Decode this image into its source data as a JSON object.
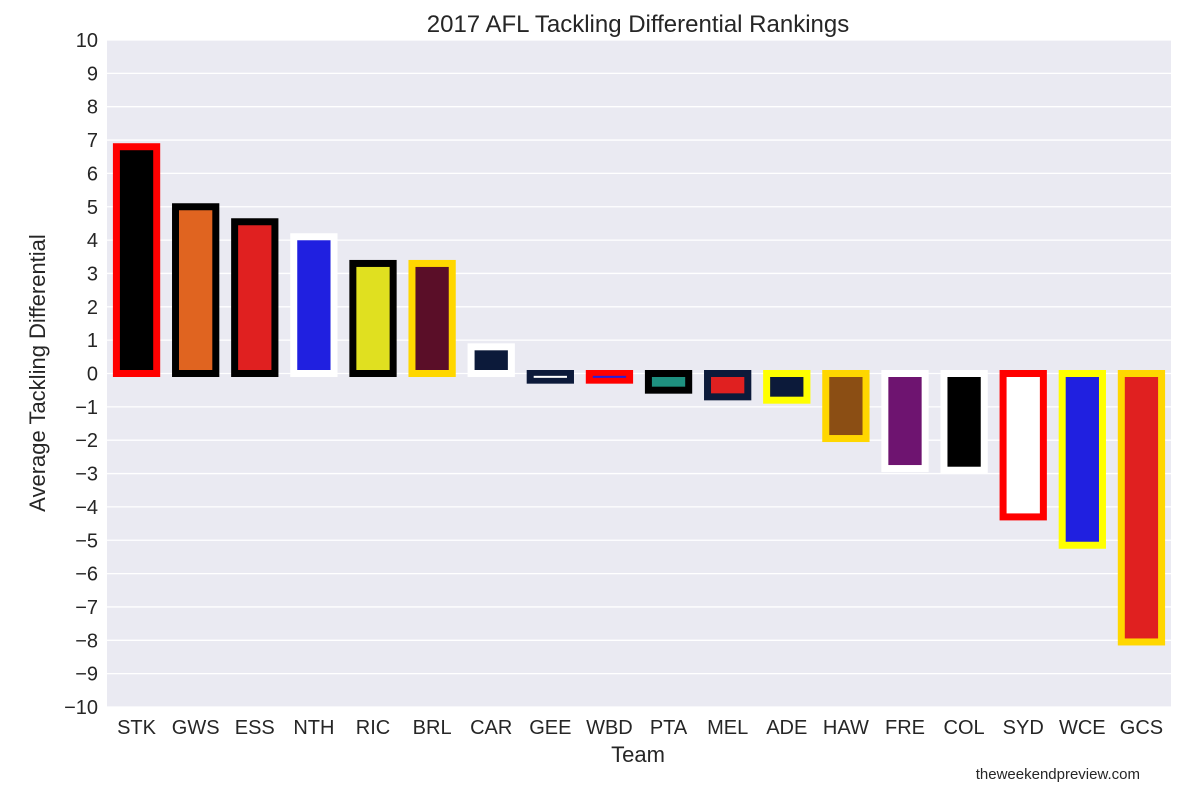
{
  "chart_data": {
    "type": "bar",
    "title": "2017 AFL Tackling Differential Rankings",
    "xlabel": "Team",
    "ylabel": "Average Tackling Differential",
    "ylim": [
      -10,
      10
    ],
    "yticks": [
      10,
      9,
      8,
      7,
      6,
      5,
      4,
      3,
      2,
      1,
      0,
      -1,
      -2,
      -3,
      -4,
      -5,
      -6,
      -7,
      -8,
      -9,
      -10
    ],
    "ytick_labels": [
      "10",
      "9",
      "8",
      "7",
      "6",
      "5",
      "4",
      "3",
      "2",
      "1",
      "0",
      "−1",
      "−2",
      "−3",
      "−4",
      "−5",
      "−6",
      "−7",
      "−8",
      "−9",
      "−10"
    ],
    "grid": true,
    "background": "#eaeaf2",
    "categories": [
      "STK",
      "GWS",
      "ESS",
      "NTH",
      "RIC",
      "BRL",
      "CAR",
      "GEE",
      "WBD",
      "PTA",
      "MEL",
      "ADE",
      "HAW",
      "FRE",
      "COL",
      "SYD",
      "WCE",
      "GCS"
    ],
    "values": [
      6.8,
      5.0,
      4.55,
      4.1,
      3.3,
      3.3,
      0.8,
      -0.2,
      -0.2,
      -0.5,
      -0.7,
      -0.8,
      -1.95,
      -2.85,
      -2.9,
      -4.3,
      -5.15,
      -8.05
    ],
    "fill_colors": [
      "#000000",
      "#e06420",
      "#e02020",
      "#2020e0",
      "#e0e020",
      "#5a0e28",
      "#0c1a3a",
      "#ffffff",
      "#2020e0",
      "#1e9080",
      "#e02020",
      "#0c1a3a",
      "#8b4e14",
      "#6e1470",
      "#000000",
      "#ffffff",
      "#2020e0",
      "#e02020"
    ],
    "edge_colors": [
      "#ff0000",
      "#000000",
      "#000000",
      "#ffffff",
      "#000000",
      "#ffd700",
      "#ffffff",
      "#0c1a3a",
      "#ff0000",
      "#000000",
      "#0c1a3a",
      "#ffff00",
      "#ffd700",
      "#ffffff",
      "#ffffff",
      "#ff0000",
      "#ffff00",
      "#ffd700"
    ]
  },
  "credit": "theweekendpreview.com"
}
